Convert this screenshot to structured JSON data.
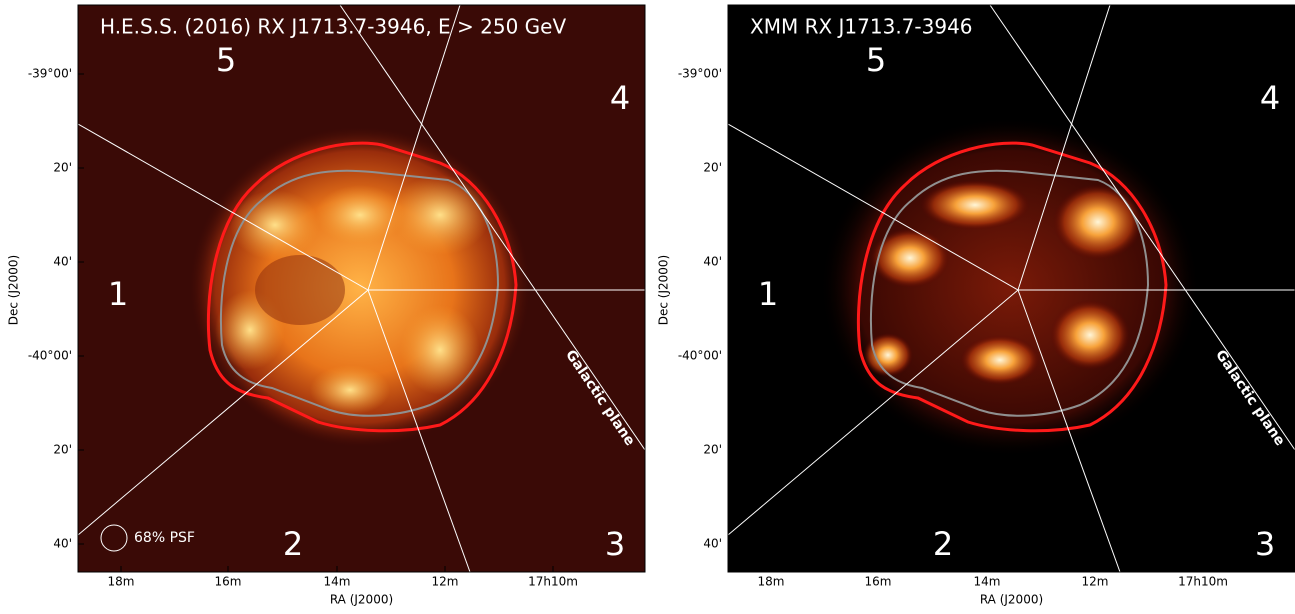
{
  "panels": [
    {
      "title": "H.E.S.S. (2016) RX J1713.7-3946, E > 250 GeV",
      "x_axis_label": "RA (J2000)",
      "y_axis_label": "Dec (J2000)",
      "x_ticks": [
        "18m",
        "16m",
        "14m",
        "12m",
        "17h10m"
      ],
      "y_ticks": [
        "-39°00'",
        "20'",
        "40'",
        "-40°00'",
        "20'",
        "40'"
      ],
      "regions": [
        "1",
        "2",
        "3",
        "4",
        "5"
      ],
      "annotation": "Galactic plane",
      "psf_label": "68% PSF"
    },
    {
      "title": "XMM RX J1713.7-3946",
      "x_axis_label": "RA (J2000)",
      "y_axis_label": "Dec (J2000)",
      "x_ticks": [
        "18m",
        "16m",
        "14m",
        "12m",
        "17h10m"
      ],
      "y_ticks": [
        "-39°00'",
        "20'",
        "40'",
        "-40°00'",
        "20'",
        "40'"
      ],
      "regions": [
        "1",
        "2",
        "3",
        "4",
        "5"
      ],
      "annotation": "Galactic plane"
    }
  ]
}
